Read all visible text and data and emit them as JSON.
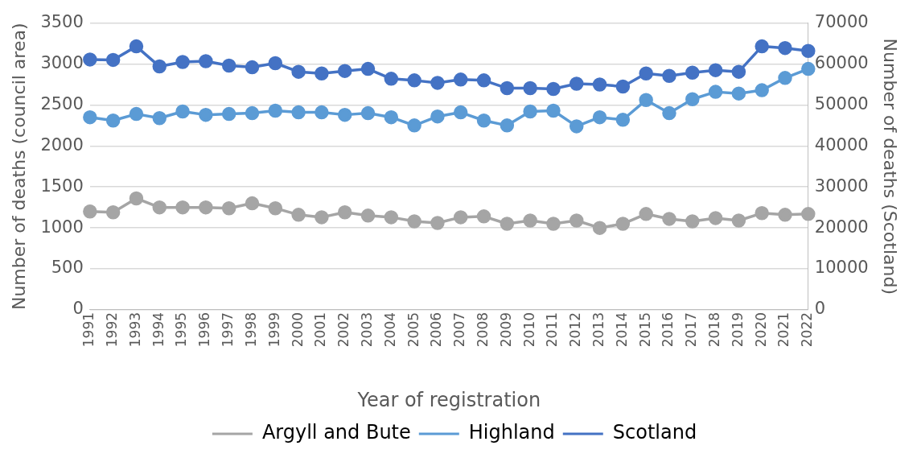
{
  "chart_data": {
    "type": "line",
    "xlabel": "Year of registration",
    "ylabel": "Number of deaths (council area)",
    "y2label": "Number of deaths (Scotland)",
    "categories": [
      "1991",
      "1992",
      "1993",
      "1994",
      "1995",
      "1996",
      "1997",
      "1998",
      "1999",
      "2000",
      "2001",
      "2002",
      "2003",
      "2004",
      "2005",
      "2006",
      "2007",
      "2008",
      "2009",
      "2010",
      "2011",
      "2012",
      "2013",
      "2014",
      "2015",
      "2016",
      "2017",
      "2018",
      "2019",
      "2020",
      "2021",
      "2022"
    ],
    "series": [
      {
        "name": "Argyll and Bute",
        "color": "#a5a5a5",
        "values": [
          1200,
          1190,
          1360,
          1250,
          1250,
          1250,
          1240,
          1300,
          1240,
          1160,
          1130,
          1190,
          1150,
          1130,
          1080,
          1060,
          1130,
          1140,
          1050,
          1090,
          1050,
          1090,
          1000,
          1050,
          1170,
          1110,
          1080,
          1120,
          1090,
          1180,
          1160,
          1170
        ]
      },
      {
        "name": "Highland",
        "color": "#5b9bd5",
        "values": [
          2350,
          2310,
          2390,
          2340,
          2420,
          2380,
          2390,
          2400,
          2430,
          2410,
          2410,
          2380,
          2400,
          2350,
          2250,
          2360,
          2410,
          2310,
          2250,
          2420,
          2430,
          2240,
          2350,
          2320,
          2560,
          2400,
          2570,
          2660,
          2640,
          2680,
          2830,
          2940
        ]
      },
      {
        "name": "Scotland",
        "color": "#4472c4",
        "axis": "y2",
        "values": [
          61100,
          61000,
          64300,
          59400,
          60500,
          60700,
          59600,
          59200,
          60200,
          58100,
          57700,
          58300,
          58800,
          56400,
          56000,
          55400,
          56200,
          56000,
          54100,
          54100,
          53900,
          55200,
          55000,
          54500,
          57700,
          57100,
          57900,
          58500,
          58100,
          64300,
          63900,
          63200
        ]
      }
    ],
    "ylim": [
      0,
      3500
    ],
    "yticks": [
      0,
      500,
      1000,
      1500,
      2000,
      2500,
      3000,
      3500
    ],
    "y2lim": [
      0,
      70000
    ],
    "y2ticks": [
      0,
      10000,
      20000,
      30000,
      40000,
      50000,
      60000,
      70000
    ],
    "grid": "y",
    "legend": "bottom",
    "marker": "circle",
    "line_style": "solid"
  }
}
